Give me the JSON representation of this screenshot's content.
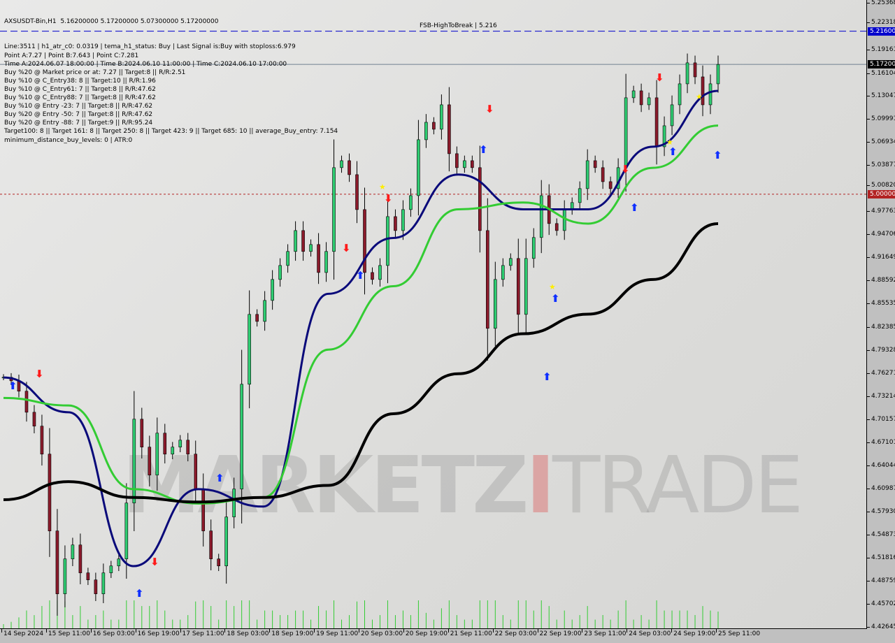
{
  "header": {
    "symbol_line": "AXSUSDT-Bin,H1  5.16200000 5.17200000 5.07300000 5.17200000",
    "lines": [
      "Line:3511 | h1_atr_c0: 0.0319 | tema_h1_status: Buy | Last Signal is:Buy with stoploss:6.979",
      "Point A:7.27 | Point B:7.643 | Point C:7.281",
      "Time A:2024.06.07 18:00:00 | Time B:2024.06.10 11:00:00 | Time C:2024.06.10 17:00:00",
      "Buy %20 @ Market price or at: 7.27 || Target:8 || R/R:2.51",
      "Buy %10 @ C_Entry38: 8 || Target:10 || R/R:1.96",
      "Buy %10 @ C_Entry61: 7 || Target:8 || R/R:47.62",
      "Buy %10 @ C_Entry88: 7 || Target:8 || R/R:47.62",
      "Buy %10 @ Entry -23: 7 || Target:8 || R/R:47.62",
      "Buy %20 @ Entry -50: 7 || Target:8 || R/R:47.62",
      "Buy %20 @ Entry -88: 7 || Target:9 || R/R:95.24",
      "Target100: 8 || Target 161: 8 || Target 250: 8 || Target 423: 9 || Target 685: 10 || average_Buy_entry: 7.154",
      "minimum_distance_buy_levels: 0 | ATR:0"
    ],
    "fsb_label": "FSB-HighToBreak | 5.216"
  },
  "watermark": {
    "part1": "MARKETZ",
    "part2": "TRADE"
  },
  "colors": {
    "background": "#e4e4e2",
    "bull_candle": "#2ecc71",
    "bear_candle": "#8b1a2b",
    "tema_line": "#0a0a7a",
    "ma_green": "#33cc33",
    "ma_black": "#000000",
    "fsb_line": "#0000cc",
    "price_line": "#708090",
    "level_line": "#b22222",
    "stop_band": "#ff4500"
  },
  "chart_data": {
    "type": "candlestick",
    "title": "AXSUSDT-Bin,H1",
    "timeframe": "H1",
    "ylim": [
      4.42645,
      5.25368
    ],
    "grid": false,
    "y_ticks": [
      "5.25368",
      "5.22318",
      "5.19161",
      "5.16104",
      "5.13047",
      "5.09991",
      "5.06934",
      "5.03877",
      "5.00820",
      "4.97763",
      "4.94706",
      "4.91649",
      "4.88592",
      "4.85535",
      "4.82385",
      "4.79328",
      "4.76271",
      "4.73214",
      "4.70157",
      "4.67101",
      "4.64044",
      "4.60987",
      "4.57930",
      "4.54873",
      "4.51816",
      "4.48759",
      "4.45702",
      "4.42645"
    ],
    "x_ticks": [
      "14 Sep 2024",
      "15 Sep 11:00",
      "16 Sep 03:00",
      "16 Sep 19:00",
      "17 Sep 11:00",
      "18 Sep 03:00",
      "18 Sep 19:00",
      "19 Sep 11:00",
      "20 Sep 03:00",
      "20 Sep 19:00",
      "21 Sep 11:00",
      "22 Sep 03:00",
      "22 Sep 19:00",
      "23 Sep 11:00",
      "24 Sep 03:00",
      "24 Sep 19:00",
      "25 Sep 11:00"
    ],
    "closes": [
      4.7574,
      4.7527,
      4.7389,
      4.711,
      4.6926,
      4.6555,
      4.5537,
      4.4703,
      4.5166,
      4.5351,
      4.4981,
      4.4888,
      4.4703,
      4.4981,
      4.5073,
      4.5166,
      4.5907,
      4.7018,
      4.6648,
      4.6277,
      4.6833,
      4.6555,
      4.6648,
      4.674,
      4.6555,
      4.6092,
      4.5537,
      4.5166,
      4.5073,
      4.5722,
      4.6092,
      4.7481,
      4.8407,
      4.8314,
      4.8592,
      4.887,
      4.9055,
      4.9241,
      4.9518,
      4.9241,
      4.9333,
      4.8962,
      4.9241,
      5.0352,
      5.0444,
      5.0259,
      4.9796,
      4.8962,
      4.887,
      4.9055,
      4.9703,
      4.9518,
      4.9796,
      4.9981,
      5.0722,
      5.0953,
      5.0861,
      5.1185,
      5.0537,
      5.0352,
      5.0444,
      5.0352,
      4.9518,
      4.8222,
      4.887,
      4.9055,
      4.9148,
      4.8407,
      4.9148,
      4.9426,
      4.9981,
      4.9611,
      4.9518,
      4.9796,
      4.9889,
      5.0074,
      5.0444,
      5.0352,
      5.0166,
      5.0074,
      5.0352,
      5.1278,
      5.137,
      5.1185,
      5.1278,
      5.0629,
      5.0907,
      5.1185,
      5.1463,
      5.1741,
      5.1555,
      5.1185,
      5.1463,
      5.172
    ],
    "series": [
      {
        "key": "tema",
        "values": [
          4.757,
          4.711,
          4.507,
          4.609,
          4.586,
          4.868,
          4.942,
          5.026,
          4.98,
          4.98,
          5.063,
          5.137
        ]
      },
      {
        "key": "ma_green",
        "values": [
          4.73,
          4.72,
          4.609,
          4.59,
          4.598,
          4.794,
          4.878,
          4.98,
          4.989,
          4.961,
          5.035,
          5.091
        ]
      },
      {
        "key": "ma_black",
        "values": [
          4.595,
          4.619,
          4.598,
          4.592,
          4.598,
          4.614,
          4.709,
          4.762,
          4.815,
          4.841,
          4.887,
          4.961
        ]
      }
    ],
    "levels": [
      {
        "price": 5.216,
        "label": "5.21600",
        "style": "dashed",
        "color": "#0000cc"
      },
      {
        "price": 5.172,
        "label": "5.17200",
        "style": "solid",
        "color": "#708090",
        "label_bg": "#000000"
      },
      {
        "price": 5.0,
        "label": "5.00000",
        "style": "dotted",
        "color": "#b22222"
      }
    ]
  }
}
